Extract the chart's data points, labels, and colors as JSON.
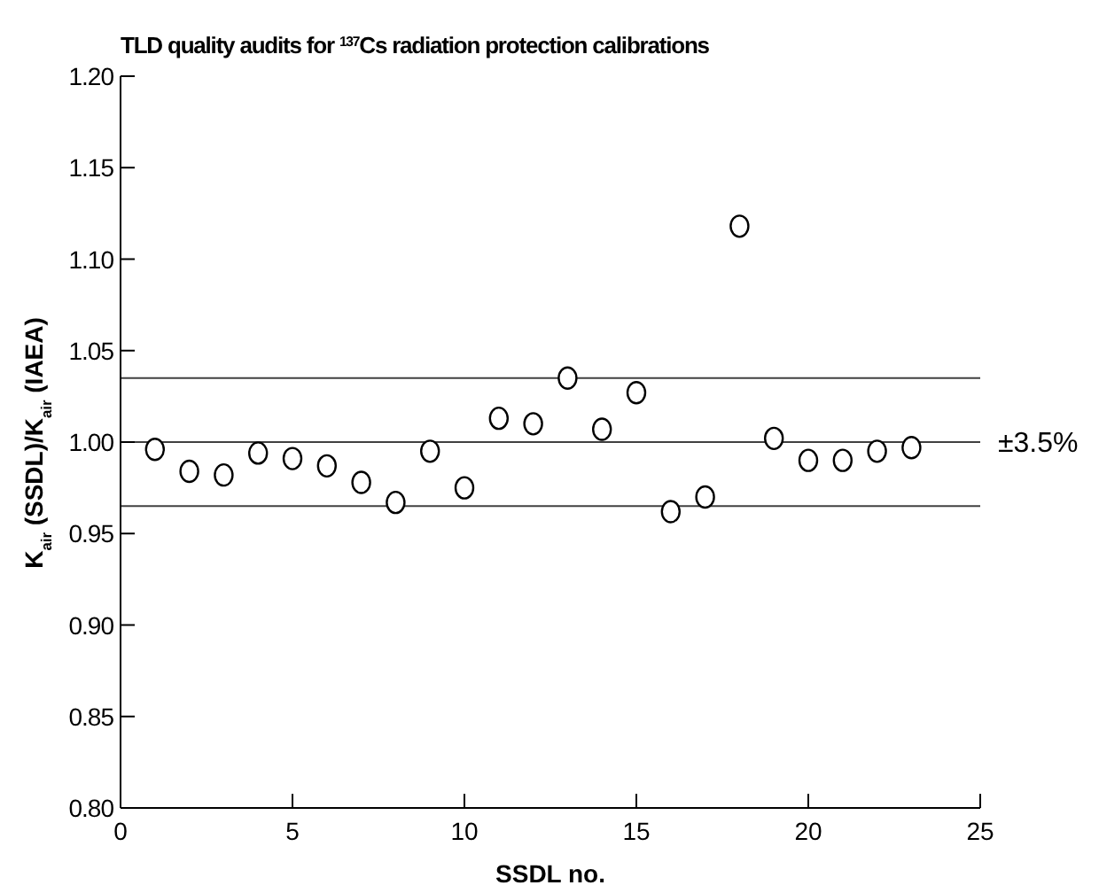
{
  "chart_data": {
    "type": "scatter",
    "title": "TLD quality audits for $^{137}$Cs radiation protection calibrations",
    "xlabel": "SSDL no.",
    "ylabel": "K$_{air}$ (SSDL)/K$_{air}$ (IAEA)",
    "x": [
      1,
      2,
      3,
      4,
      5,
      6,
      7,
      8,
      9,
      10,
      11,
      12,
      13,
      14,
      15,
      16,
      17,
      18,
      19,
      20,
      21,
      22,
      23
    ],
    "series": [
      {
        "color": "#000000",
        "values": [
          0.996,
          0.984,
          0.982,
          0.994,
          0.991,
          0.987,
          0.978,
          0.967,
          0.995,
          0.975,
          1.013,
          1.01,
          1.035,
          1.007,
          1.027,
          0.962,
          0.97,
          1.118,
          1.002,
          0.99,
          0.99,
          0.995,
          0.997
        ]
      }
    ],
    "xlim": [
      0,
      25
    ],
    "xticks": [
      0,
      5,
      10,
      15,
      20,
      25
    ],
    "ylim": [
      0.8,
      1.2
    ],
    "yticks": [
      {
        "value": 0.8,
        "label": "0.80"
      },
      {
        "value": 0.85,
        "label": "0.85"
      },
      {
        "value": 0.9,
        "label": "0.90"
      },
      {
        "value": 0.95,
        "label": "0.95"
      },
      {
        "value": 1.0,
        "label": "1.00"
      },
      {
        "value": 1.05,
        "label": "1.05"
      },
      {
        "value": 1.1,
        "label": "1.10"
      },
      {
        "value": 1.15,
        "label": "1.15"
      },
      {
        "value": 1.2,
        "label": "1.20"
      }
    ],
    "ref_lines": [
      {
        "axis": "y",
        "value": 1.035,
        "label": null,
        "color": "#404040"
      },
      {
        "axis": "y",
        "value": 1.0,
        "label": null,
        "color": "#404040"
      },
      {
        "axis": "y",
        "value": 0.965,
        "label": null,
        "color": "#404040"
      }
    ],
    "annotations": [
      {
        "text": "±3.5%",
        "x": 25,
        "y": 1.0
      }
    ],
    "marker": "circle",
    "grid": false,
    "legend": false
  }
}
